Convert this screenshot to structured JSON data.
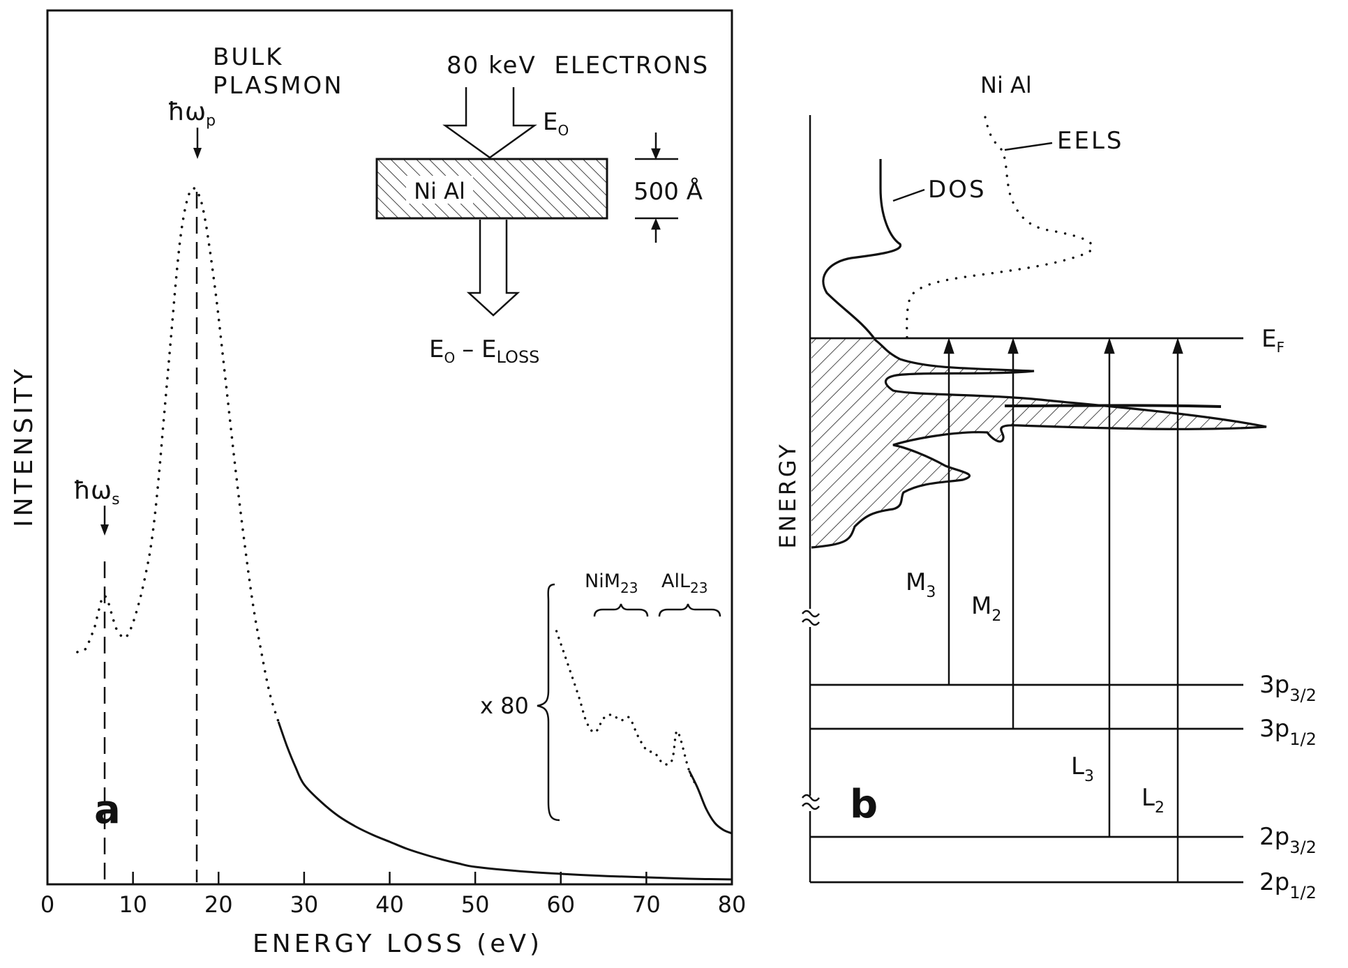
{
  "panel_a": {
    "label": "a",
    "ylabel": "INTENSITY",
    "xlabel": "ENERGY LOSS (eV)",
    "ticks": [
      "0",
      "10",
      "20",
      "30",
      "40",
      "50",
      "60",
      "70",
      "80"
    ],
    "bulk_plasmon_1": "BULK",
    "bulk_plasmon_2": "PLASMON",
    "omega_p": "ħω",
    "omega_p_sub": "p",
    "omega_s": "ħω",
    "omega_s_sub": "s",
    "beam_text": "80 keV  ELECTRONS",
    "e0": "E",
    "e0_sub": "O",
    "sample": "Ni Al",
    "thickness": "500 Å",
    "out_e": "E",
    "out_e_sub": "O",
    "out_minus": "– E",
    "out_loss_sub": "LOSS",
    "x80": "x 80",
    "ni_edge": "NiM",
    "ni_edge_sub": "23",
    "al_edge": "AlL",
    "al_edge_sub": "23"
  },
  "panel_b": {
    "label": "b",
    "ylabel": "ENERGY",
    "title": "Ni Al",
    "eels": "EELS",
    "dos": "DOS",
    "ef": "E",
    "ef_sub": "F",
    "m3": "M",
    "m3_sub": "3",
    "m2": "M",
    "m2_sub": "2",
    "l3": "L",
    "l3_sub": "3",
    "l2": "L",
    "l2_sub": "2",
    "level_3p32": "3p",
    "level_3p32_sub": "3/2",
    "level_3p12": "3p",
    "level_3p12_sub": "1/2",
    "level_2p32": "2p",
    "level_2p32_sub": "3/2",
    "level_2p12": "2p",
    "level_2p12_sub": "1/2"
  },
  "chart_data": [
    {
      "type": "line",
      "xlabel": "ENERGY LOSS (eV)",
      "ylabel": "INTENSITY",
      "xlim": [
        0,
        80
      ],
      "grid": false,
      "series": [
        {
          "x": [
            3.5,
            4.5,
            5,
            5.5,
            6,
            6.5,
            7,
            7.5,
            8,
            8.5,
            9,
            9.5,
            10,
            10.5,
            11,
            11.5,
            12,
            12.5,
            13,
            13.5,
            14,
            14.5,
            15,
            15.5,
            16,
            16.5,
            17,
            17.5,
            18,
            18.5,
            19,
            19.5,
            20,
            21,
            22,
            23,
            24,
            25,
            26,
            27,
            28,
            29,
            30,
            32,
            34,
            36,
            38,
            40,
            42,
            44,
            46,
            48,
            50,
            55,
            60,
            65,
            70,
            75,
            80
          ],
          "y": [
            0.33,
            0.335,
            0.35,
            0.365,
            0.39,
            0.41,
            0.405,
            0.385,
            0.365,
            0.355,
            0.35,
            0.357,
            0.372,
            0.392,
            0.415,
            0.443,
            0.475,
            0.52,
            0.58,
            0.65,
            0.72,
            0.79,
            0.86,
            0.92,
            0.96,
            0.985,
            0.995,
            0.99,
            0.975,
            0.945,
            0.905,
            0.86,
            0.81,
            0.7,
            0.59,
            0.49,
            0.4,
            0.33,
            0.27,
            0.23,
            0.195,
            0.165,
            0.14,
            0.115,
            0.095,
            0.08,
            0.068,
            0.058,
            0.048,
            0.04,
            0.033,
            0.027,
            0.022,
            0.016,
            0.012,
            0.009,
            0.007,
            0.005,
            0.004
          ]
        },
        {
          "name": "x 80",
          "x": [
            59.5,
            62,
            63,
            64,
            65,
            66,
            67,
            68,
            69,
            70,
            71,
            72,
            73,
            73.5,
            74,
            75,
            76,
            77,
            78,
            79,
            80
          ],
          "y": [
            0.36,
            0.27,
            0.23,
            0.215,
            0.235,
            0.24,
            0.232,
            0.236,
            0.21,
            0.19,
            0.185,
            0.17,
            0.175,
            0.215,
            0.205,
            0.16,
            0.135,
            0.105,
            0.085,
            0.075,
            0.07
          ]
        }
      ],
      "annotations": [
        "BULK PLASMON",
        "ħωp",
        "ħωs",
        "NiM23",
        "AlL23",
        "x 80",
        "80 keV ELECTRONS",
        "500 Å",
        "Ni Al"
      ]
    }
  ]
}
